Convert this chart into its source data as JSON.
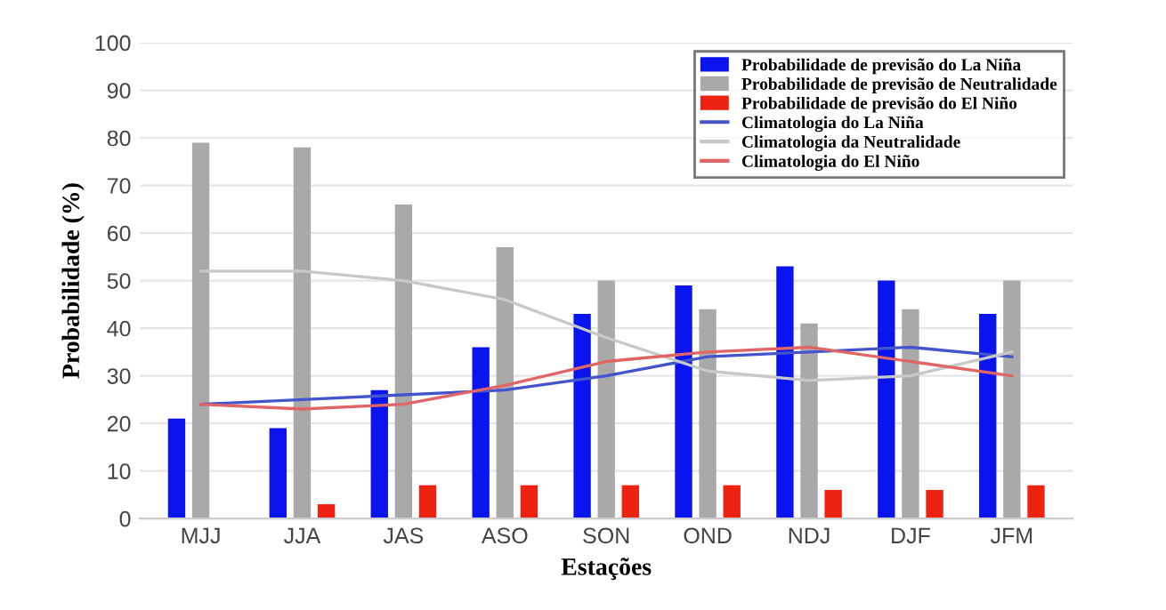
{
  "chart_data": {
    "type": "bar",
    "xlabel": "Estações",
    "ylabel": "Probabilidade (%)",
    "categories": [
      "MJJ",
      "JJA",
      "JAS",
      "ASO",
      "SON",
      "OND",
      "NDJ",
      "DJF",
      "JFM"
    ],
    "series": [
      {
        "name": "Probabilidade de previsão do La Niña",
        "color": "#0a14ee",
        "values": [
          21,
          19,
          27,
          36,
          43,
          49,
          53,
          50,
          43
        ]
      },
      {
        "name": "Probabilidade de previsão de Neutralidade",
        "color": "#a9a9a9",
        "values": [
          79,
          78,
          66,
          57,
          50,
          44,
          41,
          44,
          50
        ]
      },
      {
        "name": "Probabilidade de previsão do El Niño",
        "color": "#ee2211",
        "values": [
          0,
          3,
          7,
          7,
          7,
          7,
          6,
          6,
          7
        ]
      },
      {
        "name": "Climatologia do La Niña",
        "type": "line",
        "color": "#4455cc",
        "values": [
          24,
          25,
          26,
          27,
          30,
          34,
          35,
          36,
          34
        ]
      },
      {
        "name": "Climatologia da Neutralidade",
        "type": "line",
        "color": "#c8c8c8",
        "values": [
          52,
          52,
          50,
          46,
          38,
          31,
          29,
          30,
          35
        ]
      },
      {
        "name": "Climatologia do El Niño",
        "type": "line",
        "color": "#e06666",
        "values": [
          24,
          23,
          24,
          28,
          33,
          35,
          36,
          33,
          30
        ]
      }
    ],
    "ylim": [
      0,
      100
    ],
    "yticks": [
      0,
      10,
      20,
      30,
      40,
      50,
      60,
      70,
      80,
      90,
      100
    ],
    "grid": "y",
    "legend": "top right",
    "line_style": "solid",
    "marker": "none"
  }
}
